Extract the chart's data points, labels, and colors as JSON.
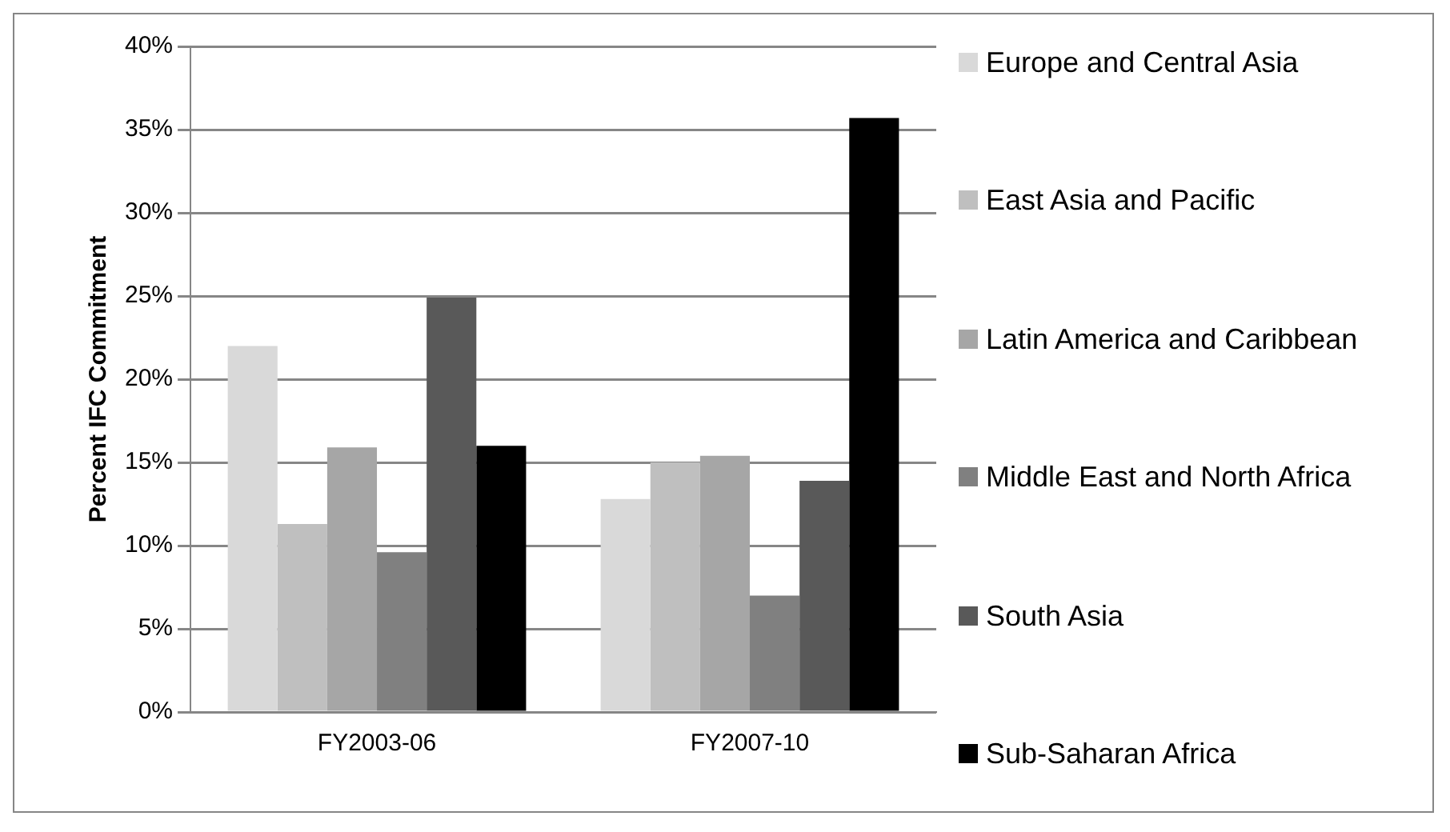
{
  "chart_data": {
    "type": "bar",
    "ylabel": "Percent IFC Commitment",
    "categories": [
      "FY2003-06",
      "FY2007-10"
    ],
    "series": [
      {
        "name": "Europe and Central Asia",
        "color": "#d9d9d9",
        "values": [
          22.0,
          12.8
        ]
      },
      {
        "name": "East Asia and Pacific",
        "color": "#bfbfbf",
        "values": [
          11.3,
          15.0
        ]
      },
      {
        "name": "Latin America and Caribbean",
        "color": "#a6a6a6",
        "values": [
          15.9,
          15.4
        ]
      },
      {
        "name": "Middle East and North Africa",
        "color": "#808080",
        "values": [
          9.6,
          7.0
        ]
      },
      {
        "name": "South Asia",
        "color": "#595959",
        "values": [
          24.9,
          13.9
        ]
      },
      {
        "name": "Sub-Saharan Africa",
        "color": "#000000",
        "values": [
          16.0,
          35.7
        ]
      }
    ],
    "ylim": [
      0,
      40
    ],
    "yticks": [
      {
        "value": 0,
        "label": "0%"
      },
      {
        "value": 5,
        "label": "5%"
      },
      {
        "value": 10,
        "label": "10%"
      },
      {
        "value": 15,
        "label": "15%"
      },
      {
        "value": 20,
        "label": "20%"
      },
      {
        "value": 25,
        "label": "25%"
      },
      {
        "value": 30,
        "label": "30%"
      },
      {
        "value": 35,
        "label": "35%"
      },
      {
        "value": 40,
        "label": "40%"
      }
    ],
    "grid": "y",
    "legend": "right"
  }
}
